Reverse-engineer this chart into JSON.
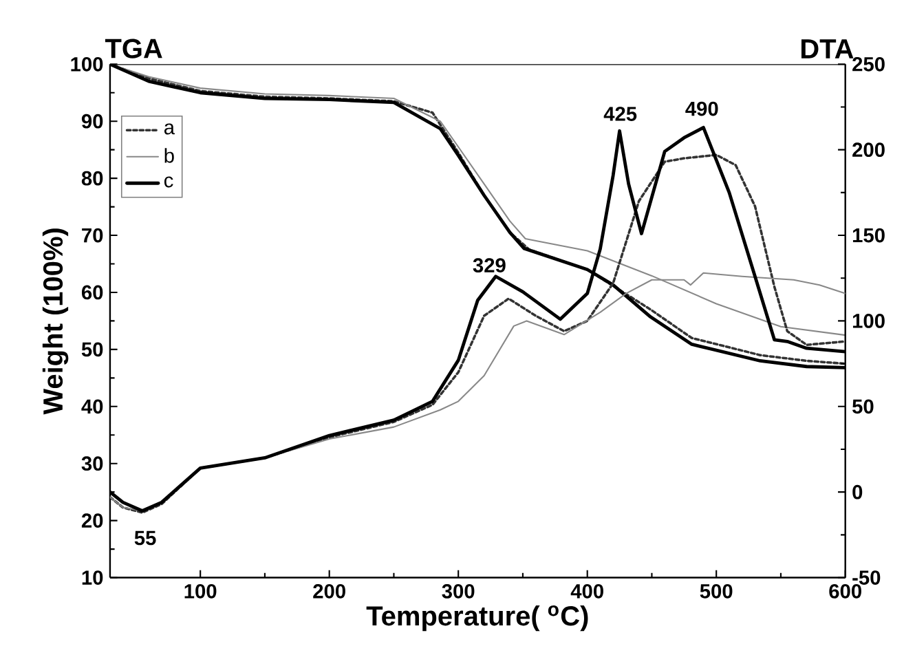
{
  "chart_data": {
    "type": "line",
    "xlabel": "Temperature( $^{o}$C)",
    "ylabel": "Weight (100%)",
    "xlim": [
      30,
      600
    ],
    "xticks": [
      100,
      200,
      300,
      400,
      500,
      600
    ],
    "ylim": [
      10,
      100
    ],
    "yticks": [
      10,
      20,
      30,
      40,
      50,
      60,
      70,
      80,
      90,
      100
    ],
    "y2lim": [
      -50,
      250
    ],
    "y2ticks": [
      -50,
      0,
      50,
      100,
      150,
      200,
      250
    ],
    "legend": "top left",
    "marker": "none",
    "annotations": [
      "TGA",
      "DTA",
      "55",
      "329",
      "425",
      "490"
    ],
    "series": [
      {
        "name": "a",
        "color": "#333333",
        "line_style": "dashed",
        "axis": "y",
        "x": [
          30,
          60,
          100,
          150,
          200,
          250,
          280,
          300,
          320,
          340,
          355,
          400,
          449,
          481,
          534,
          570,
          600
        ],
        "values": [
          100,
          97.5,
          95.3,
          94.3,
          94,
          93.5,
          91.5,
          84.5,
          77,
          70.5,
          67.5,
          64,
          57,
          52,
          49,
          48,
          47.5
        ]
      },
      {
        "name": "b",
        "color": "#888888",
        "line_style": "solid",
        "axis": "y",
        "x": [
          30,
          60,
          100,
          150,
          200,
          250,
          286,
          300,
          320,
          340,
          352,
          400,
          450,
          500,
          550,
          600
        ],
        "values": [
          100,
          97.8,
          95.8,
          94.8,
          94.5,
          94,
          90,
          85.5,
          79,
          72.5,
          69.4,
          67.3,
          62.9,
          58,
          54,
          52.5
        ]
      },
      {
        "name": "c",
        "color": "#000000",
        "line_style": "solid",
        "axis": "y",
        "x": [
          30,
          60,
          100,
          150,
          200,
          250,
          286,
          300,
          320,
          340,
          351,
          400,
          420,
          449,
          481,
          534,
          570,
          600
        ],
        "values": [
          100,
          97,
          95,
          94,
          93.8,
          93.3,
          88.7,
          84,
          77,
          70.5,
          67.7,
          64,
          61.3,
          55.7,
          50.9,
          48,
          47,
          46.8
        ]
      },
      {
        "color": "#333333",
        "line_style": "dashed",
        "axis": "y2",
        "x": [
          30,
          40,
          55,
          70,
          100,
          150,
          200,
          250,
          280,
          300,
          320,
          339,
          360,
          382,
          400,
          420,
          440,
          460,
          475,
          500,
          515,
          530,
          545,
          555,
          570,
          600
        ],
        "values": [
          -3,
          -9,
          -12,
          -7,
          14,
          20,
          32,
          41,
          51,
          70,
          103,
          113,
          103,
          94,
          100,
          122,
          170,
          193,
          195,
          197,
          191,
          167,
          120,
          94,
          86,
          88
        ]
      },
      {
        "color": "#888888",
        "line_style": "solid",
        "axis": "y2",
        "x": [
          30,
          40,
          55,
          70,
          100,
          150,
          200,
          250,
          286,
          300,
          320,
          343,
          353,
          382,
          410,
          430,
          450,
          475,
          480,
          490,
          520,
          560,
          580,
          600
        ],
        "values": [
          -3,
          -9,
          -11,
          -6,
          14,
          20,
          31,
          38,
          48,
          53,
          68,
          97,
          100,
          92,
          105,
          116,
          124,
          124,
          121,
          128,
          126,
          124,
          121,
          116
        ]
      },
      {
        "color": "#000000",
        "line_style": "solid",
        "axis": "y2",
        "x": [
          30,
          40,
          55,
          70,
          100,
          150,
          200,
          250,
          280,
          300,
          315,
          329,
          350,
          379,
          400,
          410,
          420,
          425,
          432,
          442,
          460,
          475,
          490,
          510,
          530,
          545,
          555,
          570,
          600
        ],
        "values": [
          0,
          -6,
          -11,
          -6,
          14,
          20,
          33,
          42,
          53,
          77,
          112,
          126,
          117,
          101,
          116,
          142,
          185,
          211,
          180,
          151,
          199,
          207,
          213,
          175,
          126,
          89,
          88,
          84,
          82
        ]
      }
    ]
  }
}
